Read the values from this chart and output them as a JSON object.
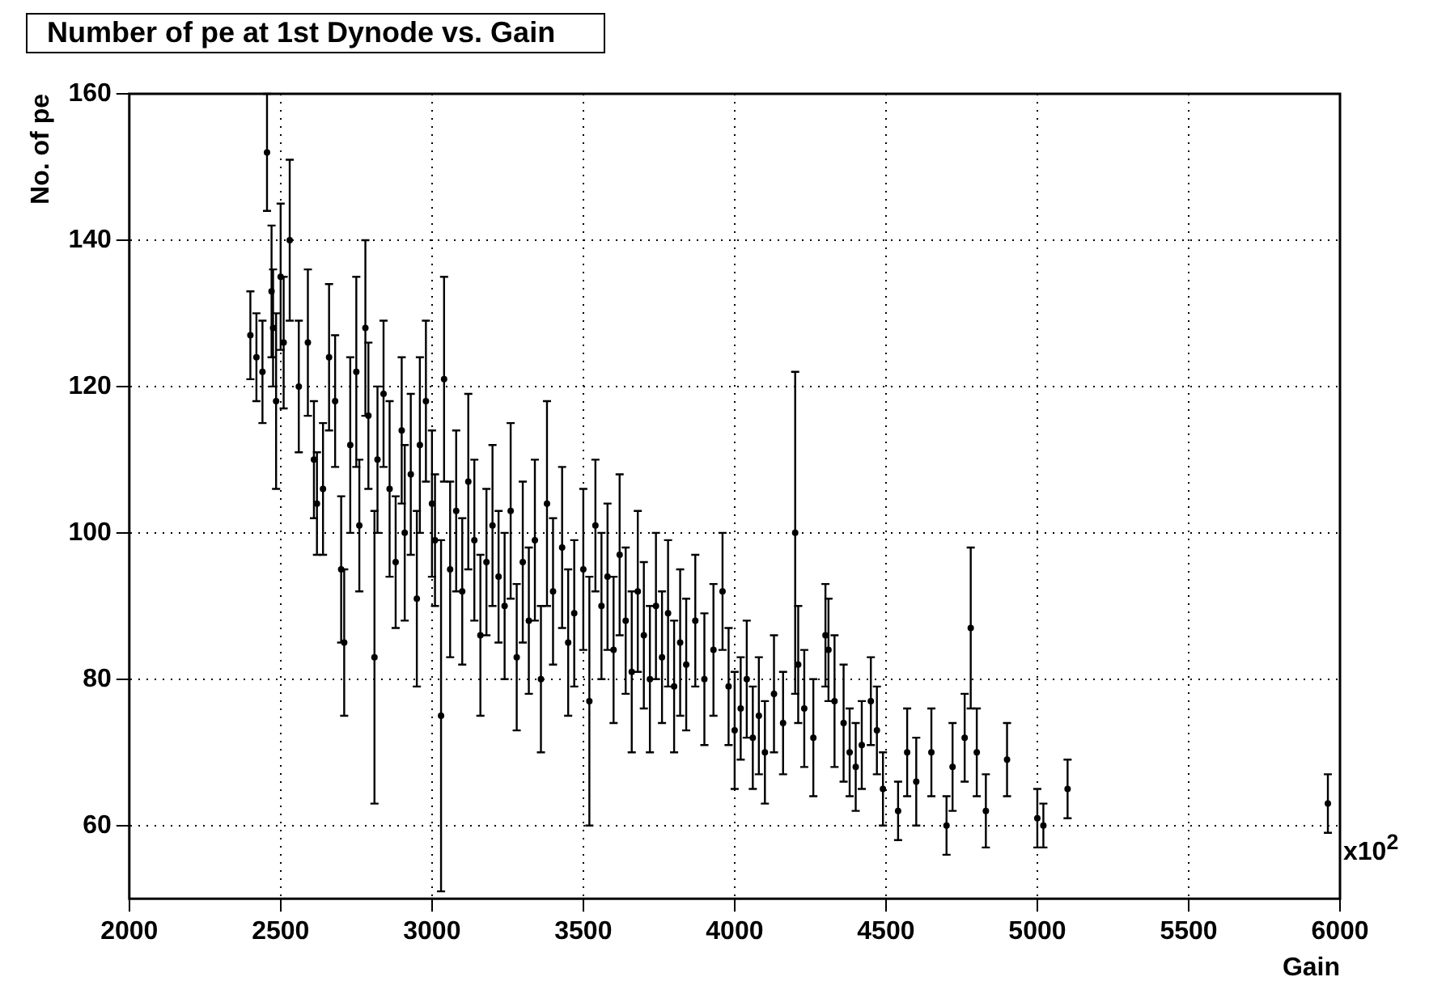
{
  "chart_data": {
    "type": "scatter",
    "title": "Number of pe at 1st Dynode vs. Gain",
    "xlabel": "Gain",
    "ylabel": "No. of pe",
    "annotations": [
      "x10$^{2}$"
    ],
    "xlim": [
      2000,
      6000
    ],
    "xticks": [
      2000,
      2500,
      3000,
      3500,
      4000,
      4500,
      5000,
      5500,
      6000
    ],
    "ylim": [
      50,
      160
    ],
    "yticks": [
      60,
      80,
      100,
      120,
      140,
      160
    ],
    "grid": true,
    "marker": "circle",
    "series": [
      {
        "color": "#000000",
        "x": [
          2400,
          2420,
          2440,
          2455,
          2470,
          2475,
          2485,
          2500,
          2510,
          2530,
          2560,
          2590,
          2610,
          2620,
          2640,
          2660,
          2680,
          2700,
          2710,
          2730,
          2750,
          2760,
          2780,
          2790,
          2810,
          2820,
          2840,
          2860,
          2880,
          2900,
          2910,
          2930,
          2950,
          2960,
          2980,
          3000,
          3010,
          3030,
          3040,
          3060,
          3080,
          3100,
          3120,
          3140,
          3160,
          3180,
          3200,
          3220,
          3240,
          3260,
          3280,
          3300,
          3320,
          3340,
          3360,
          3380,
          3400,
          3430,
          3450,
          3470,
          3500,
          3520,
          3540,
          3560,
          3580,
          3600,
          3620,
          3640,
          3660,
          3680,
          3700,
          3720,
          3740,
          3760,
          3780,
          3800,
          3820,
          3840,
          3870,
          3900,
          3930,
          3960,
          3980,
          4000,
          4020,
          4040,
          4060,
          4080,
          4100,
          4130,
          4160,
          4200,
          4210,
          4230,
          4260,
          4300,
          4310,
          4330,
          4360,
          4380,
          4400,
          4420,
          4450,
          4470,
          4490,
          4540,
          4570,
          4600,
          4650,
          4700,
          4720,
          4760,
          4780,
          4800,
          4830,
          4900,
          5000,
          5020,
          5100,
          5960
        ],
        "values": [
          127,
          124,
          122,
          152,
          133,
          128,
          118,
          135,
          126,
          140,
          120,
          126,
          110,
          104,
          106,
          124,
          118,
          95,
          85,
          112,
          122,
          101,
          128,
          116,
          83,
          110,
          119,
          106,
          96,
          114,
          100,
          108,
          91,
          112,
          118,
          104,
          99,
          75,
          121,
          95,
          103,
          92,
          107,
          99,
          86,
          96,
          101,
          94,
          90,
          103,
          83,
          96,
          88,
          99,
          80,
          104,
          92,
          98,
          85,
          89,
          95,
          77,
          101,
          90,
          94,
          84,
          97,
          88,
          81,
          92,
          86,
          80,
          90,
          83,
          89,
          79,
          85,
          82,
          88,
          80,
          84,
          92,
          79,
          73,
          76,
          80,
          72,
          75,
          70,
          78,
          74,
          100,
          82,
          76,
          72,
          86,
          84,
          77,
          74,
          70,
          68,
          71,
          77,
          73,
          65,
          62,
          70,
          66,
          70,
          60,
          68,
          72,
          87,
          70,
          62,
          69,
          61,
          60,
          65,
          63
        ],
        "errors": [
          6,
          6,
          7,
          8,
          9,
          8,
          12,
          10,
          9,
          11,
          9,
          10,
          8,
          7,
          9,
          10,
          9,
          10,
          10,
          12,
          13,
          9,
          12,
          10,
          20,
          10,
          10,
          12,
          9,
          10,
          12,
          11,
          12,
          12,
          11,
          10,
          9,
          24,
          14,
          12,
          11,
          10,
          12,
          11,
          11,
          10,
          11,
          9,
          10,
          12,
          10,
          11,
          10,
          11,
          10,
          14,
          10,
          11,
          10,
          10,
          11,
          17,
          9,
          10,
          10,
          10,
          11,
          10,
          11,
          11,
          10,
          10,
          10,
          9,
          10,
          9,
          10,
          9,
          9,
          9,
          9,
          8,
          8,
          8,
          7,
          8,
          7,
          8,
          7,
          8,
          7,
          22,
          8,
          8,
          8,
          7,
          7,
          9,
          8,
          6,
          6,
          6,
          6,
          6,
          5,
          4,
          6,
          6,
          6,
          4,
          6,
          6,
          11,
          6,
          5,
          5,
          4,
          3,
          4,
          4
        ]
      }
    ]
  }
}
